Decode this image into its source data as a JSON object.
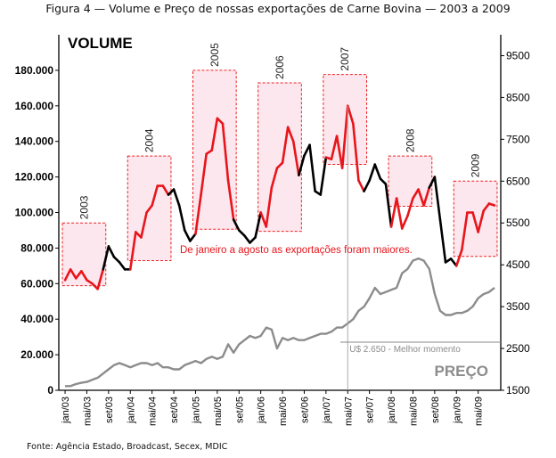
{
  "figure_title": "Figura 4 — Volume e Preço de nossas exportações de Carne Bovina — 2003 a 2009",
  "source": "Fonte: Agência Estado, Broadcast, Secex, MDIC",
  "chart_data": {
    "type": "line",
    "title": "Figura 4 — Volume e Preço de nossas exportações de Carne Bovina — 2003 a 2009",
    "x_tick_labels": [
      "jan/03",
      "mai/03",
      "set/03",
      "jan/04",
      "mai/04",
      "set/04",
      "jan/05",
      "mai/05",
      "set/05",
      "jan/06",
      "mai/06",
      "set/06",
      "jan/07",
      "mai/07",
      "set/07",
      "jan/08",
      "mai/08",
      "set/08",
      "jan/09",
      "mai/09"
    ],
    "y_left": {
      "label": "VOLUME",
      "ylim": [
        0,
        200000
      ],
      "ticks": [
        "0",
        "20.000",
        "40.000",
        "60.000",
        "80.000",
        "100.000",
        "120.000",
        "140.000",
        "160.000",
        "180.000"
      ]
    },
    "y_right": {
      "label": "PREÇO",
      "ylim": [
        1500,
        10000
      ],
      "ticks": [
        "1500",
        "2500",
        "3500",
        "4500",
        "5500",
        "6500",
        "7500",
        "8500",
        "9500"
      ]
    },
    "series": [
      {
        "name": "VOLUME",
        "axis": "left",
        "color_highlight": "#e8151b",
        "color_normal": "#000000",
        "x": [
          "jan/03",
          "fev/03",
          "mar/03",
          "abr/03",
          "mai/03",
          "jun/03",
          "jul/03",
          "ago/03",
          "set/03",
          "out/03",
          "nov/03",
          "dez/03",
          "jan/04",
          "fev/04",
          "mar/04",
          "abr/04",
          "mai/04",
          "jun/04",
          "jul/04",
          "ago/04",
          "set/04",
          "out/04",
          "nov/04",
          "dez/04",
          "jan/05",
          "fev/05",
          "mar/05",
          "abr/05",
          "mai/05",
          "jun/05",
          "jul/05",
          "ago/05",
          "set/05",
          "out/05",
          "nov/05",
          "dez/05",
          "jan/06",
          "fev/06",
          "mar/06",
          "abr/06",
          "mai/06",
          "jun/06",
          "jul/06",
          "ago/06",
          "set/06",
          "out/06",
          "nov/06",
          "dez/06",
          "jan/07",
          "fev/07",
          "mar/07",
          "abr/07",
          "mai/07",
          "jun/07",
          "jul/07",
          "ago/07",
          "set/07",
          "out/07",
          "nov/07",
          "dez/07",
          "jan/08",
          "fev/08",
          "mar/08",
          "abr/08",
          "mai/08",
          "jun/08",
          "jul/08",
          "ago/08",
          "set/08",
          "out/08",
          "nov/08",
          "dez/08",
          "jan/09",
          "fev/09",
          "mar/09",
          "abr/09",
          "mai/09",
          "jun/09",
          "jul/09",
          "ago/09"
        ],
        "values": [
          62000,
          68000,
          63000,
          67000,
          62000,
          60000,
          57000,
          68000,
          81000,
          75000,
          72000,
          68000,
          68000,
          89000,
          86000,
          100000,
          104000,
          115000,
          115000,
          110000,
          113000,
          104000,
          90000,
          84000,
          88000,
          110000,
          133000,
          135000,
          153000,
          150000,
          118000,
          96000,
          90000,
          87000,
          83000,
          86000,
          100000,
          92000,
          114000,
          125000,
          128000,
          148000,
          140000,
          121000,
          132000,
          138000,
          112000,
          110000,
          131000,
          130000,
          143000,
          125000,
          160000,
          150000,
          118000,
          112000,
          118000,
          127000,
          119000,
          116000,
          92000,
          108000,
          91000,
          98000,
          108000,
          113000,
          104000,
          114000,
          120000,
          96000,
          72000,
          74000,
          70000,
          79000,
          100000,
          100000,
          89000,
          101000,
          105000,
          104000
        ],
        "highlight_months": [
          "jan",
          "fev",
          "mar",
          "abr",
          "mai",
          "jun",
          "jul",
          "ago"
        ]
      },
      {
        "name": "PREÇO",
        "axis": "right",
        "color": "#8c8c8c",
        "values": [
          1600,
          1600,
          1650,
          1680,
          1700,
          1750,
          1800,
          1900,
          2000,
          2100,
          2150,
          2100,
          2050,
          2100,
          2150,
          2150,
          2100,
          2150,
          2050,
          2050,
          2000,
          2000,
          2100,
          2150,
          2200,
          2150,
          2250,
          2300,
          2250,
          2300,
          2600,
          2400,
          2600,
          2700,
          2800,
          2750,
          2800,
          3000,
          2950,
          2500,
          2750,
          2700,
          2750,
          2700,
          2700,
          2750,
          2800,
          2850,
          2850,
          2900,
          3000,
          3000,
          3100,
          3200,
          3400,
          3500,
          3700,
          3950,
          3800,
          3850,
          3900,
          3950,
          4300,
          4400,
          4600,
          4650,
          4600,
          4400,
          3800,
          3400,
          3300,
          3300,
          3350,
          3350,
          3400,
          3500,
          3700,
          3800,
          3850,
          3950
        ],
        "annotation": "U$ 2.650 - Melhor momento",
        "annotation_value": 2650
      }
    ],
    "year_boxes": [
      {
        "label": "2003",
        "start": "jan/03",
        "end": "ago/03",
        "ymin_right": 4000,
        "ymax_right": 5500
      },
      {
        "label": "2004",
        "start": "jan/04",
        "end": "ago/04",
        "ymin_right": 4600,
        "ymax_right": 7100
      },
      {
        "label": "2005",
        "start": "jan/05",
        "end": "ago/05",
        "ymin_right": 5350,
        "ymax_right": 9150
      },
      {
        "label": "2006",
        "start": "jan/06",
        "end": "ago/06",
        "ymin_right": 5300,
        "ymax_right": 8850
      },
      {
        "label": "2007",
        "start": "jan/07",
        "end": "ago/07",
        "ymin_right": 6900,
        "ymax_right": 9050
      },
      {
        "label": "2008",
        "start": "jan/08",
        "end": "ago/08",
        "ymin_right": 5900,
        "ymax_right": 7100
      },
      {
        "label": "2009",
        "start": "jan/09",
        "end": "ago/09",
        "ymin_right": 4700,
        "ymax_right": 6500
      }
    ],
    "annotations": [
      "De janeiro a agosto as exportações foram maiores."
    ],
    "grid": false,
    "legend": "none"
  }
}
